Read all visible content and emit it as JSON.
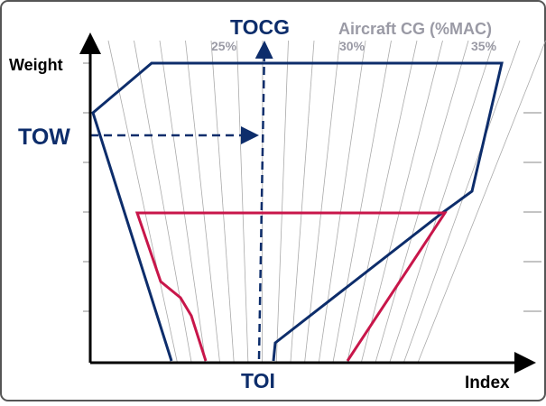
{
  "labels": {
    "y_axis": "Weight",
    "x_axis": "Index",
    "tow": "TOW",
    "tocg": "TOCG",
    "toi": "TOI",
    "cg_title": "Aircraft CG (%MAC)",
    "cg_25": "25%",
    "cg_30": "30%",
    "cg_35": "35%"
  }
}
